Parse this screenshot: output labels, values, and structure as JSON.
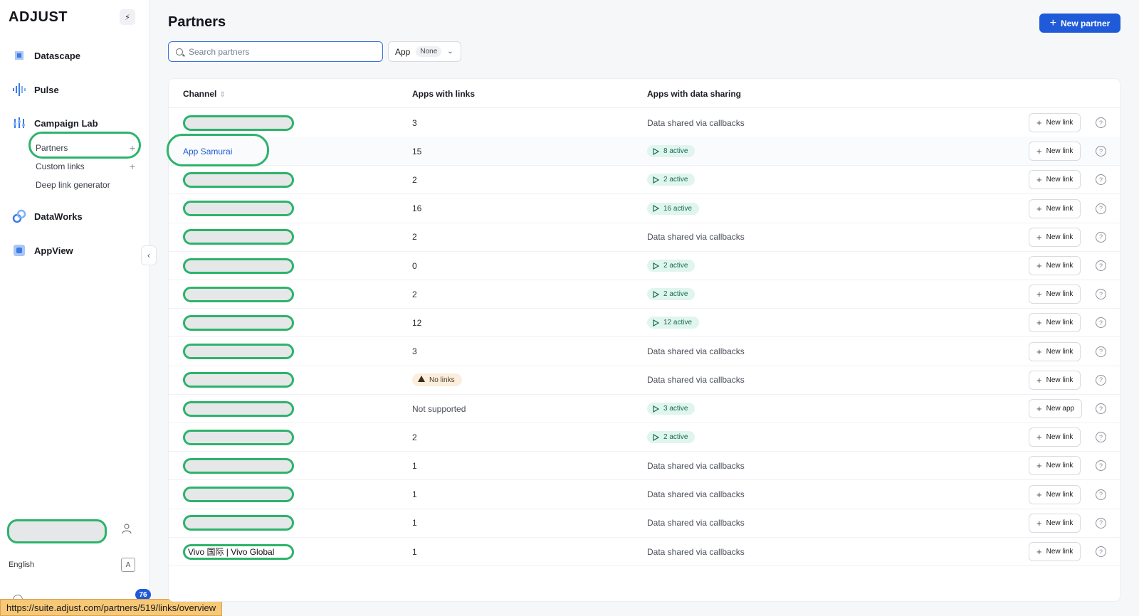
{
  "sidebar": {
    "logo": "ADJUST",
    "items": [
      {
        "label": "Datascape",
        "icon": "datascape-icon"
      },
      {
        "label": "Pulse",
        "icon": "pulse-icon"
      },
      {
        "label": "Campaign Lab",
        "icon": "campaign-lab-icon"
      },
      {
        "label": "DataWorks",
        "icon": "dataworks-icon"
      },
      {
        "label": "AppView",
        "icon": "appview-icon"
      }
    ],
    "subitems": [
      {
        "label": "Partners",
        "plus": "+"
      },
      {
        "label": "Custom links",
        "plus": "+"
      },
      {
        "label": "Deep link generator",
        "plus": ""
      }
    ],
    "language": "English",
    "notification_count": "76"
  },
  "status_url": "https://suite.adjust.com/partners/519/links/overview",
  "main": {
    "title": "Partners",
    "new_partner_label": "New partner",
    "search_placeholder": "Search partners",
    "app_filter_label": "App",
    "app_filter_value": "None"
  },
  "table": {
    "headers": {
      "channel": "Channel",
      "apps": "Apps with links",
      "sharing": "Apps with data sharing"
    },
    "rows": [
      {
        "channel": "",
        "redacted": true,
        "apps": "3",
        "sharing_type": "text",
        "sharing": "Data shared via callbacks",
        "button": "New link"
      },
      {
        "channel": "App Samurai",
        "redacted": false,
        "link": true,
        "apps": "15",
        "sharing_type": "active",
        "sharing": "8 active",
        "button": "New link"
      },
      {
        "channel": "",
        "redacted": true,
        "apps": "2",
        "sharing_type": "active",
        "sharing": "2 active",
        "button": "New link"
      },
      {
        "channel": "",
        "redacted": true,
        "apps": "16",
        "sharing_type": "active",
        "sharing": "16 active",
        "button": "New link"
      },
      {
        "channel": "",
        "redacted": true,
        "apps": "2",
        "sharing_type": "text",
        "sharing": "Data shared via callbacks",
        "button": "New link"
      },
      {
        "channel": "",
        "redacted": true,
        "apps": "0",
        "sharing_type": "active",
        "sharing": "2 active",
        "button": "New link"
      },
      {
        "channel": "",
        "redacted": true,
        "apps": "2",
        "sharing_type": "active",
        "sharing": "2 active",
        "button": "New link"
      },
      {
        "channel": "",
        "redacted": true,
        "apps": "12",
        "sharing_type": "active",
        "sharing": "12 active",
        "button": "New link"
      },
      {
        "channel": "",
        "redacted": true,
        "apps": "3",
        "sharing_type": "text",
        "sharing": "Data shared via callbacks",
        "button": "New link"
      },
      {
        "channel": "",
        "redacted": true,
        "apps": "No links",
        "apps_type": "warning",
        "sharing_type": "text",
        "sharing": "Data shared via callbacks",
        "button": "New link"
      },
      {
        "channel": "",
        "redacted": true,
        "apps": "Not supported",
        "sharing_type": "active",
        "sharing": "3 active",
        "button": "New app"
      },
      {
        "channel": "",
        "redacted": true,
        "apps": "2",
        "sharing_type": "active",
        "sharing": "2 active",
        "button": "New link"
      },
      {
        "channel": "",
        "redacted": true,
        "apps": "1",
        "sharing_type": "text",
        "sharing": "Data shared via callbacks",
        "button": "New link"
      },
      {
        "channel": "",
        "redacted": true,
        "apps": "1",
        "sharing_type": "text",
        "sharing": "Data shared via callbacks",
        "button": "New link"
      },
      {
        "channel": "",
        "redacted": true,
        "apps": "1",
        "sharing_type": "text",
        "sharing": "Data shared via callbacks",
        "button": "New link"
      },
      {
        "channel": "Vivo 国际 | Vivo Global",
        "redacted": false,
        "circled": true,
        "apps": "1",
        "sharing_type": "text",
        "sharing": "Data shared via callbacks",
        "button": "New link"
      }
    ]
  },
  "colors": {
    "accent": "#1f5bd8",
    "annotation": "#2db36b",
    "active_bg": "#dff5ee",
    "warning_bg": "#fbeedc"
  }
}
